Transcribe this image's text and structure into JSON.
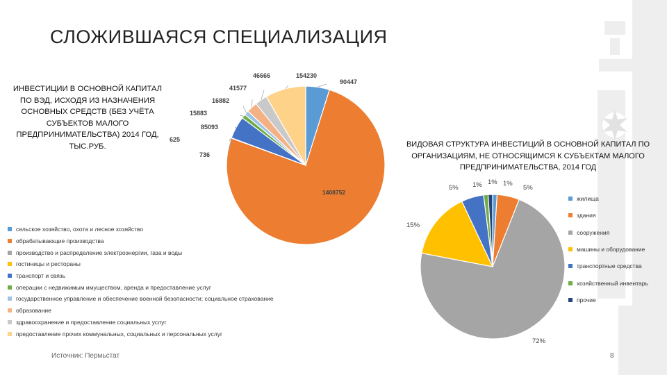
{
  "title": "СЛОЖИВШАЯСЯ СПЕЦИАЛИЗАЦИЯ",
  "chart1_caption": "ИНВЕСТИЦИИ В ОСНОВНОЙ КАПИТАЛ ПО ВЭД, ИСХОДЯ ИЗ НАЗНАЧЕНИЯ ОСНОВНЫХ СРЕДСТВ (БЕЗ УЧЁТА СУБЪЕКТОВ МАЛОГО ПРЕДПРИНИМАТЕЛЬСТВА) 2014 ГОД, ТЫС.РУБ.",
  "chart2_caption": "ВИДОВАЯ СТРУКТУРА ИНВЕСТИЦИЙ В ОСНОВНОЙ КАПИТАЛ ПО ОРГАНИЗАЦИЯМ, НЕ ОТНОСЯЩИМСЯ К СУБЪЕКТАМ МАЛОГО ПРЕДПРИНИМАТЕЛЬСТВА, 2014 ГОД",
  "source": "Источник: Пермьстат",
  "page_number": "8",
  "chart_data": [
    {
      "type": "pie",
      "series": [
        {
          "label": "сельское хозяйство, охота и лесное хозяйство",
          "value": 90447,
          "value_label": "90447",
          "color": "#5b9bd5"
        },
        {
          "label": "обрабатывающие производства",
          "value": 1408752,
          "value_label": "1408752",
          "color": "#ed7d31"
        },
        {
          "label": "производство и распределение электроэнергии, газа и воды",
          "value": 736,
          "value_label": "736",
          "color": "#a5a5a5"
        },
        {
          "label": "гостиницы и рестораны",
          "value": 625,
          "value_label": "625",
          "color": "#ffc000"
        },
        {
          "label": "транспорт и связь",
          "value": 85093,
          "value_label": "85093",
          "color": "#4472c4"
        },
        {
          "label": "операции с недвижимым имуществом, аренда и предоставление услуг",
          "value": 15883,
          "value_label": "15883",
          "color": "#70ad47"
        },
        {
          "label": "государственное управление и обеспечение военной безопасности; социальное страхование",
          "value": 16882,
          "value_label": "16882",
          "color": "#9dc3e6"
        },
        {
          "label": "образование",
          "value": 41577,
          "value_label": "41577",
          "color": "#f4b183"
        },
        {
          "label": "здравоохранение и предоставление социальных услуг",
          "value": 46666,
          "value_label": "46666",
          "color": "#c9c9c9"
        },
        {
          "label": "предоставление прочих коммунальных, социальных и персональных услуг",
          "value": 154230,
          "value_label": "154230",
          "color": "#ffd28a"
        }
      ]
    },
    {
      "type": "pie",
      "series": [
        {
          "label": "жилища",
          "value": 1,
          "value_label": "1%",
          "color": "#5b9bd5"
        },
        {
          "label": "здания",
          "value": 5,
          "value_label": "5%",
          "color": "#ed7d31"
        },
        {
          "label": "сооружения",
          "value": 72,
          "value_label": "72%",
          "color": "#a5a5a5"
        },
        {
          "label": "машины и оборудование",
          "value": 15,
          "value_label": "15%",
          "color": "#ffc000"
        },
        {
          "label": "транспортные средства",
          "value": 5,
          "value_label": "5%",
          "color": "#4472c4"
        },
        {
          "label": "хозяйственный инвентарь",
          "value": 1,
          "value_label": "1%",
          "color": "#70ad47"
        },
        {
          "label": "прочие",
          "value": 1,
          "value_label": "1%",
          "color": "#264478"
        }
      ]
    }
  ]
}
